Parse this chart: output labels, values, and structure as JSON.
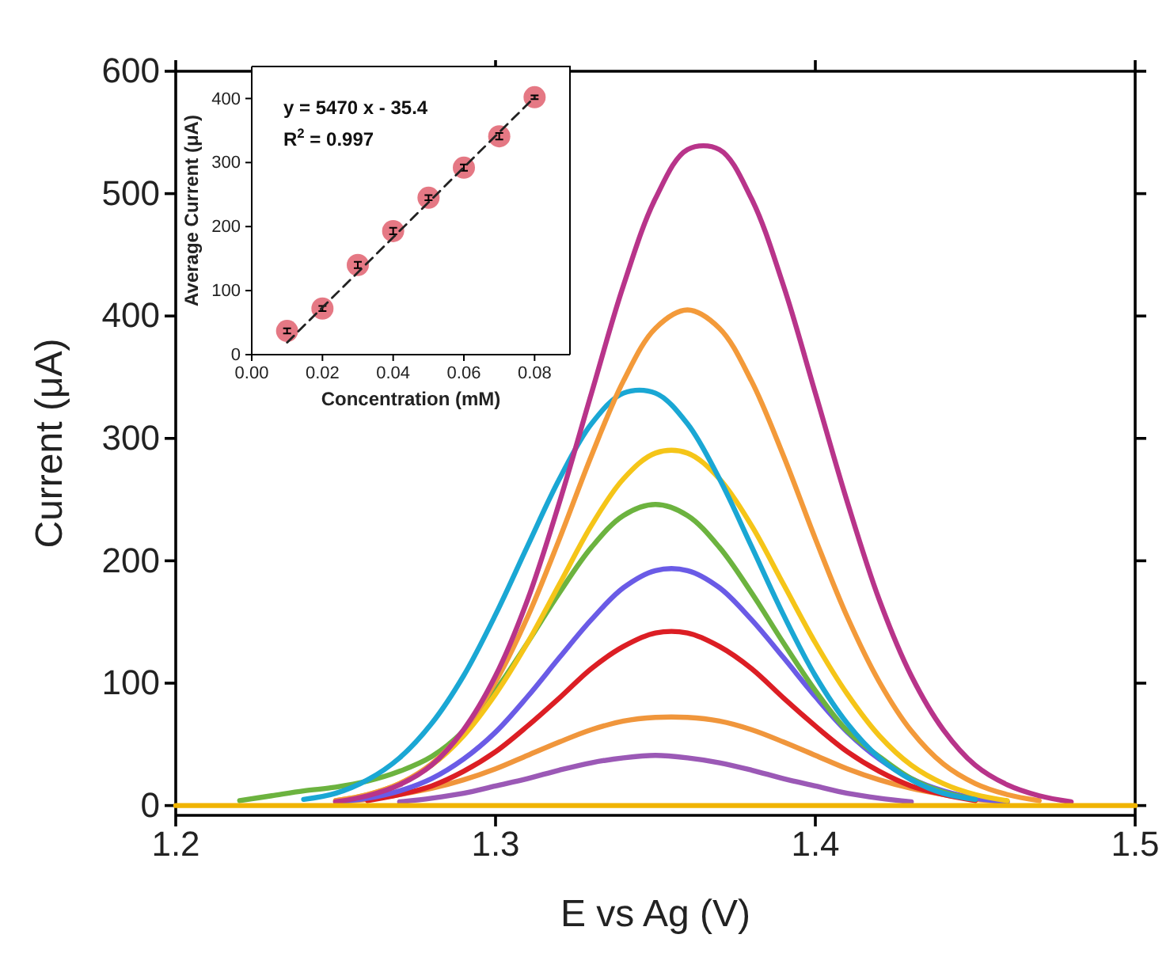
{
  "chart_data": [
    {
      "type": "line",
      "xlabel": "E vs Ag (V)",
      "ylabel": "Current (μA)",
      "xlim": [
        1.2,
        1.5
      ],
      "ylim": [
        -8,
        600
      ],
      "xticks": [
        1.2,
        1.3,
        1.4,
        1.5
      ],
      "yticks": [
        0,
        100,
        200,
        300,
        400,
        500,
        600
      ],
      "grid": false,
      "marker": "none",
      "line_style": "solid",
      "x": [
        1.2,
        1.21,
        1.22,
        1.23,
        1.24,
        1.25,
        1.26,
        1.27,
        1.28,
        1.29,
        1.3,
        1.31,
        1.32,
        1.33,
        1.34,
        1.35,
        1.36,
        1.37,
        1.38,
        1.39,
        1.4,
        1.41,
        1.42,
        1.43,
        1.44,
        1.45,
        1.46,
        1.47,
        1.48,
        1.49,
        1.5
      ],
      "series": [
        {
          "color": "#9b59b6",
          "values": [
            null,
            null,
            null,
            null,
            null,
            null,
            null,
            3,
            6,
            10,
            16,
            22,
            29,
            35,
            39,
            41,
            39,
            35,
            29,
            22,
            16,
            10,
            6,
            3,
            null,
            null,
            null,
            null,
            null,
            null,
            null
          ]
        },
        {
          "color": "#f0963c",
          "values": [
            null,
            null,
            null,
            null,
            null,
            3,
            5,
            9,
            14,
            21,
            30,
            41,
            52,
            62,
            69,
            72,
            72,
            69,
            62,
            52,
            41,
            30,
            21,
            14,
            9,
            5,
            3,
            null,
            null,
            null,
            null
          ]
        },
        {
          "color": "#dc1e24",
          "values": [
            null,
            null,
            null,
            null,
            null,
            null,
            4,
            9,
            16,
            28,
            44,
            65,
            88,
            112,
            130,
            141,
            141,
            130,
            112,
            88,
            65,
            44,
            28,
            16,
            9,
            4,
            null,
            null,
            null,
            null,
            null
          ]
        },
        {
          "color": "#6a5be6",
          "values": [
            null,
            null,
            null,
            null,
            null,
            3,
            6,
            12,
            22,
            38,
            60,
            89,
            121,
            152,
            178,
            192,
            192,
            178,
            152,
            121,
            89,
            60,
            38,
            22,
            12,
            6,
            3,
            null,
            null,
            null,
            null
          ]
        },
        {
          "color": "#6cb33f",
          "values": [
            null,
            null,
            4,
            8,
            12,
            15,
            20,
            28,
            40,
            61,
            94,
            133,
            174,
            211,
            237,
            246,
            237,
            211,
            174,
            133,
            94,
            61,
            40,
            22,
            11,
            5,
            null,
            null,
            null,
            null,
            null
          ]
        },
        {
          "color": "#f5c518",
          "values": [
            null,
            null,
            null,
            null,
            null,
            4,
            9,
            18,
            33,
            57,
            91,
            133,
            181,
            229,
            267,
            288,
            288,
            267,
            229,
            181,
            133,
            91,
            57,
            33,
            18,
            9,
            4,
            null,
            null,
            null,
            null
          ]
        },
        {
          "color": "#1aa7d4",
          "values": [
            null,
            null,
            null,
            null,
            5,
            10,
            21,
            39,
            67,
            106,
            156,
            212,
            267,
            312,
            337,
            337,
            312,
            267,
            212,
            156,
            106,
            67,
            39,
            21,
            10,
            5,
            null,
            null,
            null,
            null,
            null
          ]
        },
        {
          "color": "#f39a3a",
          "values": [
            null,
            null,
            null,
            null,
            null,
            4,
            9,
            18,
            34,
            61,
            101,
            154,
            218,
            286,
            347,
            390,
            405,
            390,
            347,
            286,
            218,
            154,
            101,
            61,
            34,
            18,
            9,
            4,
            null,
            null,
            null
          ]
        },
        {
          "color": "#b8348a",
          "values": [
            null,
            null,
            null,
            null,
            null,
            3,
            8,
            17,
            33,
            62,
            106,
            168,
            248,
            337,
            425,
            496,
            536,
            536,
            496,
            425,
            337,
            248,
            168,
            106,
            62,
            33,
            17,
            8,
            3,
            null,
            null
          ]
        },
        {
          "color": "#f0b400",
          "values": [
            0,
            0,
            0,
            0,
            0,
            0,
            0,
            0,
            0,
            0,
            0,
            0,
            0,
            0,
            0,
            0,
            0,
            0,
            0,
            0,
            0,
            0,
            0,
            0,
            0,
            0,
            0,
            0,
            0,
            0,
            0
          ]
        }
      ]
    },
    {
      "type": "scatter",
      "xlabel": "Concentration (mM)",
      "ylabel": "Average Current (μA)",
      "xlim": [
        0,
        0.09
      ],
      "ylim": [
        0,
        450
      ],
      "xticks": [
        {
          "value": 0,
          "label": "0.00"
        },
        {
          "value": 0.02,
          "label": "0.02"
        },
        {
          "value": 0.04,
          "label": "0.04"
        },
        {
          "value": 0.06,
          "label": "0.06"
        },
        {
          "value": 0.08,
          "label": "0.08"
        }
      ],
      "yticks": [
        0,
        100,
        200,
        300,
        400
      ],
      "grid": false,
      "marker": "circle",
      "annotations": [
        "y = 5470 x - 35.4",
        "R$^{2}$ = 0.997"
      ],
      "series": [
        {
          "color": "#e0606e",
          "x": [
            0.01,
            0.02,
            0.03,
            0.04,
            0.05,
            0.06,
            0.07,
            0.08
          ],
          "values": [
            37,
            72,
            140,
            193,
            245,
            292,
            341,
            402
          ],
          "errors": [
            4,
            4,
            5,
            5,
            4,
            5,
            5,
            3
          ]
        },
        {
          "type": "line",
          "color": "#222222",
          "line_style": "dashed",
          "marker": "none",
          "x": [
            0.01,
            0.08
          ],
          "values": [
            19,
            402
          ]
        }
      ]
    }
  ]
}
